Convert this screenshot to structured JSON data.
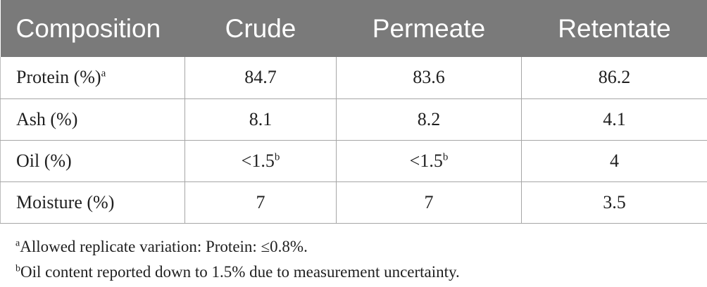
{
  "table": {
    "headers": [
      "Composition",
      "Crude",
      "Permeate",
      "Retentate"
    ],
    "rows": [
      {
        "label": "Protein (%)",
        "label_sup": "a",
        "crude": "84.7",
        "crude_sup": "",
        "permeate": "83.6",
        "permeate_sup": "",
        "retentate": "86.2"
      },
      {
        "label": "Ash (%)",
        "label_sup": "",
        "crude": "8.1",
        "crude_sup": "",
        "permeate": "8.2",
        "permeate_sup": "",
        "retentate": "4.1"
      },
      {
        "label": "Oil (%)",
        "label_sup": "",
        "crude": "<1.5",
        "crude_sup": "b",
        "permeate": "<1.5",
        "permeate_sup": "b",
        "retentate": "4"
      },
      {
        "label": "Moisture (%)",
        "label_sup": "",
        "crude": "7",
        "crude_sup": "",
        "permeate": "7",
        "permeate_sup": "",
        "retentate": "3.5"
      }
    ]
  },
  "footnotes": [
    {
      "mark": "a",
      "text": "Allowed replicate variation: Protein: ≤0.8%."
    },
    {
      "mark": "b",
      "text": "Oil content reported down to 1.5% due to measurement uncertainty."
    }
  ]
}
